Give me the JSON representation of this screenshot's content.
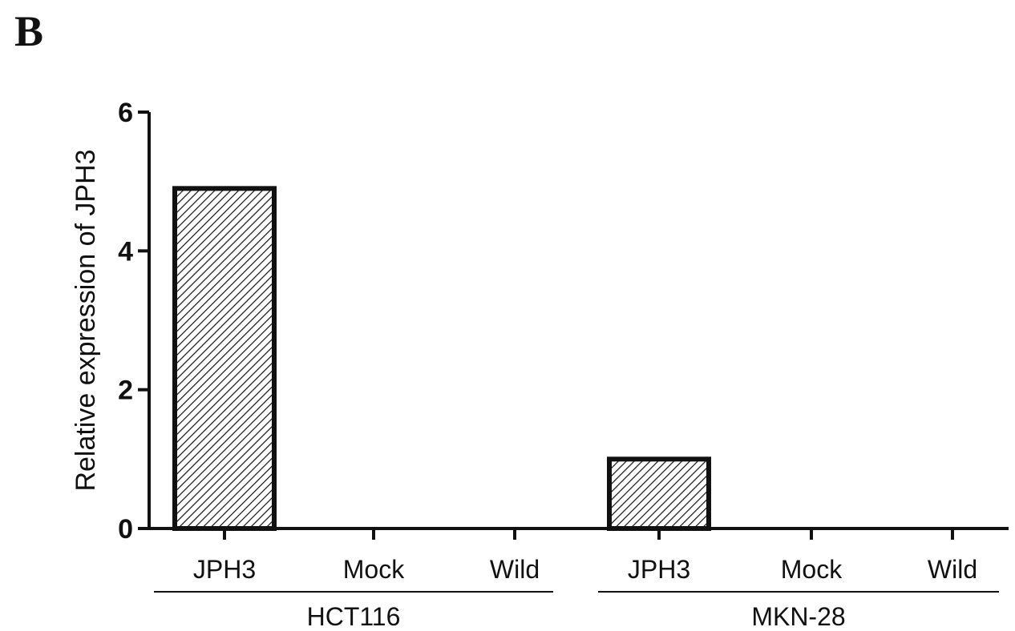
{
  "panel_label": "B",
  "chart_data": {
    "type": "bar",
    "title": "",
    "xlabel": "",
    "ylabel": "Relative expression of JPH3",
    "ylim": [
      0,
      6
    ],
    "yticks": [
      0,
      2,
      4,
      6
    ],
    "grid": false,
    "legend": "none",
    "categories": [
      "JPH3",
      "Mock",
      "Wild",
      "JPH3",
      "Mock",
      "Wild"
    ],
    "groups": [
      {
        "label": "HCT116",
        "categories": [
          "JPH3",
          "Mock",
          "Wild"
        ]
      },
      {
        "label": "MKN-28",
        "categories": [
          "JPH3",
          "Mock",
          "Wild"
        ]
      }
    ],
    "values": [
      4.9,
      0,
      0,
      1.0,
      0,
      0
    ],
    "bar_fill": "diagonal-hatch",
    "colors": {
      "bar_edge": "#111111",
      "hatch": "#111111",
      "axis": "#111111",
      "background": "#ffffff"
    }
  }
}
